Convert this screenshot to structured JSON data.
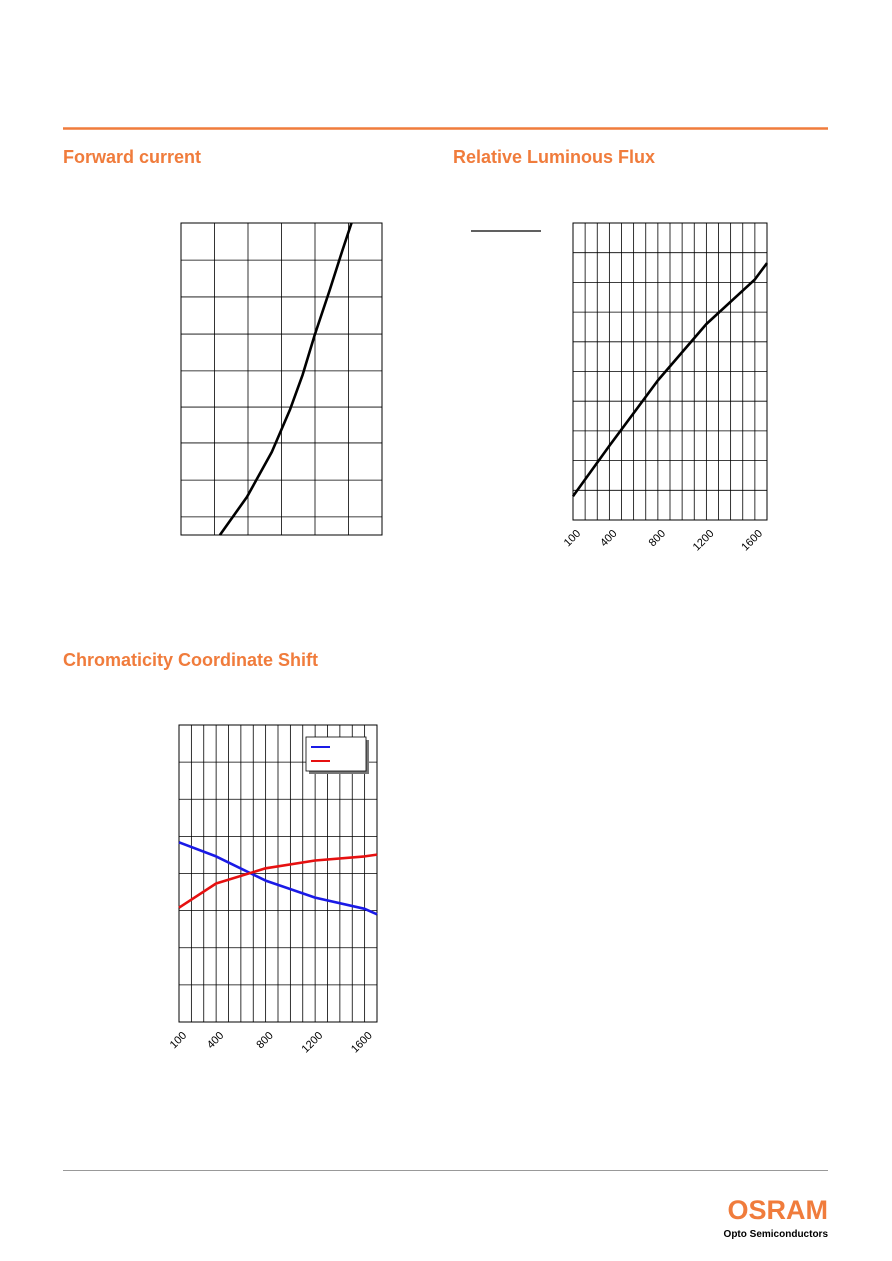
{
  "chart_data": [
    {
      "type": "line",
      "title": "Forward current",
      "x": [
        1.16,
        1.97,
        2.71,
        3.25,
        3.63,
        3.99,
        4.44,
        4.82,
        5.09
      ],
      "series": [
        {
          "color": "#000000",
          "values": [
            0,
            12.2,
            26.6,
            40.1,
            51.3,
            64.1,
            78.5,
            91.3,
            100
          ]
        }
      ],
      "xlim": [
        0,
        6
      ],
      "ylim": [
        0,
        100
      ],
      "xgrid": [
        0,
        1,
        2,
        3,
        4,
        5,
        6
      ],
      "ygrid": [
        0,
        5.8,
        17.6,
        29.5,
        41.0,
        52.6,
        64.4,
        76.3,
        88.1,
        100
      ]
    },
    {
      "type": "line",
      "title": "Relative Luminous Flux",
      "x": [
        100,
        400,
        800,
        1200,
        1600,
        1700
      ],
      "series": [
        {
          "color": "#000000",
          "values": [
            0.8,
            2.5,
            4.7,
            6.6,
            8.1,
            8.65
          ]
        }
      ],
      "xlim": [
        100,
        1700
      ],
      "ylim": [
        0,
        10
      ],
      "xticks": [
        100,
        400,
        800,
        1200,
        1600
      ],
      "xgrid": [
        100,
        200,
        300,
        400,
        500,
        600,
        700,
        800,
        900,
        1000,
        1100,
        1200,
        1300,
        1400,
        1500,
        1600,
        1700
      ],
      "ygrid": [
        0,
        1,
        2,
        3,
        4,
        5,
        6,
        7,
        8,
        9,
        10
      ]
    },
    {
      "type": "line",
      "title": "Chromaticity Coordinate Shift",
      "x": [
        100,
        400,
        800,
        1200,
        1600,
        1700
      ],
      "series": [
        {
          "color": "#1a1ae6",
          "values": [
            0.84,
            0.46,
            -0.19,
            -0.65,
            -0.95,
            -1.1
          ]
        },
        {
          "color": "#e61010",
          "values": [
            -0.92,
            -0.27,
            0.14,
            0.35,
            0.46,
            0.51
          ]
        }
      ],
      "xlim": [
        100,
        1700
      ],
      "ylim": [
        -4,
        4
      ],
      "xticks": [
        100,
        400,
        800,
        1200,
        1600
      ],
      "xgrid": [
        100,
        200,
        300,
        400,
        500,
        600,
        700,
        800,
        900,
        1000,
        1100,
        1200,
        1300,
        1400,
        1500,
        1600,
        1700
      ],
      "ygrid": [
        -4,
        -3,
        -2,
        -1,
        0,
        1,
        2,
        3,
        4
      ],
      "legend": true
    }
  ],
  "logo": {
    "brand": "OSRAM",
    "tagline": "Opto Semiconductors"
  }
}
